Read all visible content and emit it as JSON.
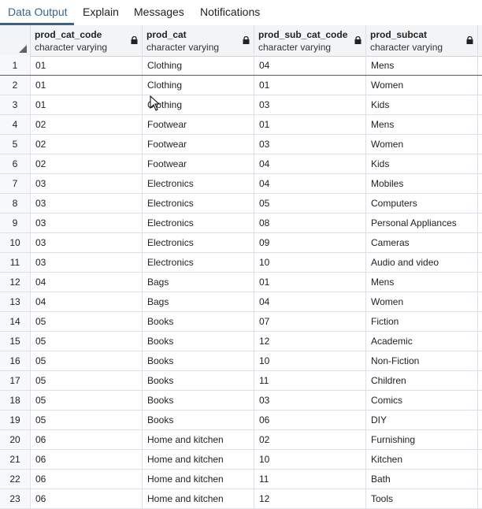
{
  "tabs": [
    "Data Output",
    "Explain",
    "Messages",
    "Notifications"
  ],
  "columns": [
    {
      "name": "prod_cat_code",
      "type": "character varying"
    },
    {
      "name": "prod_cat",
      "type": "character varying"
    },
    {
      "name": "prod_sub_cat_code",
      "type": "character varying"
    },
    {
      "name": "prod_subcat",
      "type": "character varying"
    }
  ],
  "rows": [
    [
      "1",
      "01",
      "Clothing",
      "04",
      "Mens"
    ],
    [
      "2",
      "01",
      "Clothing",
      "01",
      "Women"
    ],
    [
      "3",
      "01",
      "Clothing",
      "03",
      "Kids"
    ],
    [
      "4",
      "02",
      "Footwear",
      "01",
      "Mens"
    ],
    [
      "5",
      "02",
      "Footwear",
      "03",
      "Women"
    ],
    [
      "6",
      "02",
      "Footwear",
      "04",
      "Kids"
    ],
    [
      "7",
      "03",
      "Electronics",
      "04",
      "Mobiles"
    ],
    [
      "8",
      "03",
      "Electronics",
      "05",
      "Computers"
    ],
    [
      "9",
      "03",
      "Electronics",
      "08",
      "Personal Appliances"
    ],
    [
      "10",
      "03",
      "Electronics",
      "09",
      "Cameras"
    ],
    [
      "11",
      "03",
      "Electronics",
      "10",
      "Audio and video"
    ],
    [
      "12",
      "04",
      "Bags",
      "01",
      "Mens"
    ],
    [
      "13",
      "04",
      "Bags",
      "04",
      "Women"
    ],
    [
      "14",
      "05",
      "Books",
      "07",
      "Fiction"
    ],
    [
      "15",
      "05",
      "Books",
      "12",
      "Academic"
    ],
    [
      "16",
      "05",
      "Books",
      "10",
      "Non-Fiction"
    ],
    [
      "17",
      "05",
      "Books",
      "11",
      "Children"
    ],
    [
      "18",
      "05",
      "Books",
      "03",
      "Comics"
    ],
    [
      "19",
      "05",
      "Books",
      "06",
      "DIY"
    ],
    [
      "20",
      "06",
      "Home and kitchen",
      "02",
      "Furnishing"
    ],
    [
      "21",
      "06",
      "Home and kitchen",
      "10",
      "Kitchen"
    ],
    [
      "22",
      "06",
      "Home and kitchen",
      "11",
      "Bath"
    ],
    [
      "23",
      "06",
      "Home and kitchen",
      "12",
      "Tools"
    ]
  ],
  "colors": {
    "accent": "#326690",
    "header_bg": "#f3f4f6",
    "grid_line": "#dde0e6"
  },
  "icons": {
    "column_lock": "lock-icon",
    "select_all": "select-all-corner-icon",
    "pointer": "mouse-cursor-icon"
  }
}
